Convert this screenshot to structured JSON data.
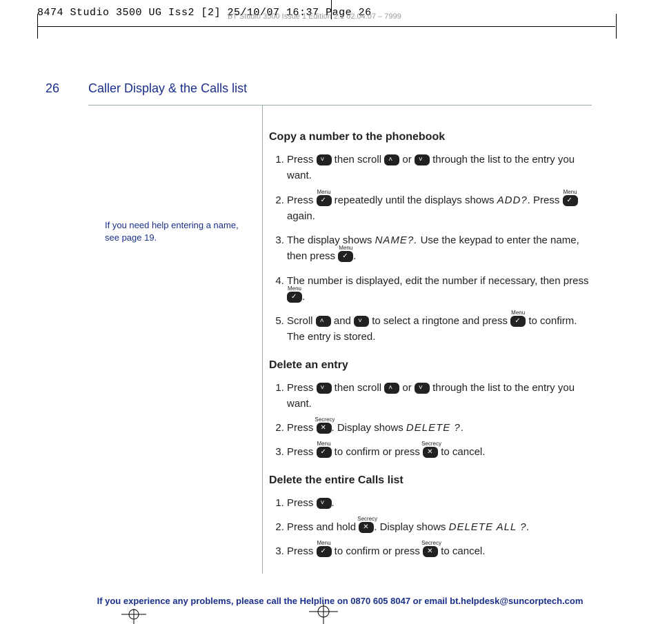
{
  "printHeader": "8474 Studio 3500 UG Iss2 [2]  25/10/07  16:37  Page 26",
  "printSub": "BT Studio 3500  Issue 1  Edition 2.1  02.04.07 – 7999",
  "pageNumber": "26",
  "pageTitle": "Caller Display & the Calls list",
  "sidebarNote": "If you need help entering a name, see page 19.",
  "sections": [
    {
      "title": "Copy a number to the phonebook",
      "steps": [
        {
          "parts": [
            {
              "t": "Press "
            },
            {
              "btn": "down"
            },
            {
              "t": " then scroll "
            },
            {
              "btn": "up"
            },
            {
              "t": " or "
            },
            {
              "btn": "down"
            },
            {
              "t": " through the list to the entry you want."
            }
          ]
        },
        {
          "parts": [
            {
              "t": "Press "
            },
            {
              "btn": "menu"
            },
            {
              "t": " repeatedly until the displays shows "
            },
            {
              "lcd": "ADD?"
            },
            {
              "t": ". Press "
            },
            {
              "btn": "menu"
            },
            {
              "t": " again."
            }
          ]
        },
        {
          "parts": [
            {
              "t": "The display shows "
            },
            {
              "lcd": "NAME?."
            },
            {
              "t": " Use the keypad to enter the name, then press "
            },
            {
              "btn": "menu"
            },
            {
              "t": "."
            }
          ]
        },
        {
          "parts": [
            {
              "t": "The number is displayed, edit the number if necessary, then press "
            },
            {
              "btn": "menu"
            },
            {
              "t": "."
            }
          ]
        },
        {
          "parts": [
            {
              "t": "Scroll "
            },
            {
              "btn": "up"
            },
            {
              "t": " and "
            },
            {
              "btn": "down"
            },
            {
              "t": " to select a ringtone and press "
            },
            {
              "btn": "menu"
            },
            {
              "t": " to confirm. The entry is stored."
            }
          ]
        }
      ]
    },
    {
      "title": "Delete an entry",
      "steps": [
        {
          "parts": [
            {
              "t": "Press "
            },
            {
              "btn": "down"
            },
            {
              "t": " then scroll "
            },
            {
              "btn": "up"
            },
            {
              "t": " or "
            },
            {
              "btn": "down"
            },
            {
              "t": " through the list to the entry you want."
            }
          ]
        },
        {
          "parts": [
            {
              "t": "Press "
            },
            {
              "btn": "secrecy"
            },
            {
              "t": ". Display shows "
            },
            {
              "lcd": "DELETE ?"
            },
            {
              "t": "."
            }
          ]
        },
        {
          "parts": [
            {
              "t": "Press "
            },
            {
              "btn": "menu"
            },
            {
              "t": " to confirm or press "
            },
            {
              "btn": "secrecy"
            },
            {
              "t": " to cancel."
            }
          ]
        }
      ]
    },
    {
      "title": "Delete the entire Calls list",
      "steps": [
        {
          "parts": [
            {
              "t": "Press "
            },
            {
              "btn": "down"
            },
            {
              "t": "."
            }
          ]
        },
        {
          "parts": [
            {
              "t": "Press and hold "
            },
            {
              "btn": "secrecy"
            },
            {
              "t": ". Display shows "
            },
            {
              "lcd": "DELETE ALL ?."
            }
          ]
        },
        {
          "parts": [
            {
              "t": "Press "
            },
            {
              "btn": "menu"
            },
            {
              "t": "  to confirm or press "
            },
            {
              "btn": "secrecy"
            },
            {
              "t": " to cancel."
            }
          ]
        }
      ]
    }
  ],
  "footer": "If you experience any problems, please call the Helpline on 0870 605 8047 or email bt.helpdesk@suncorptech.com"
}
